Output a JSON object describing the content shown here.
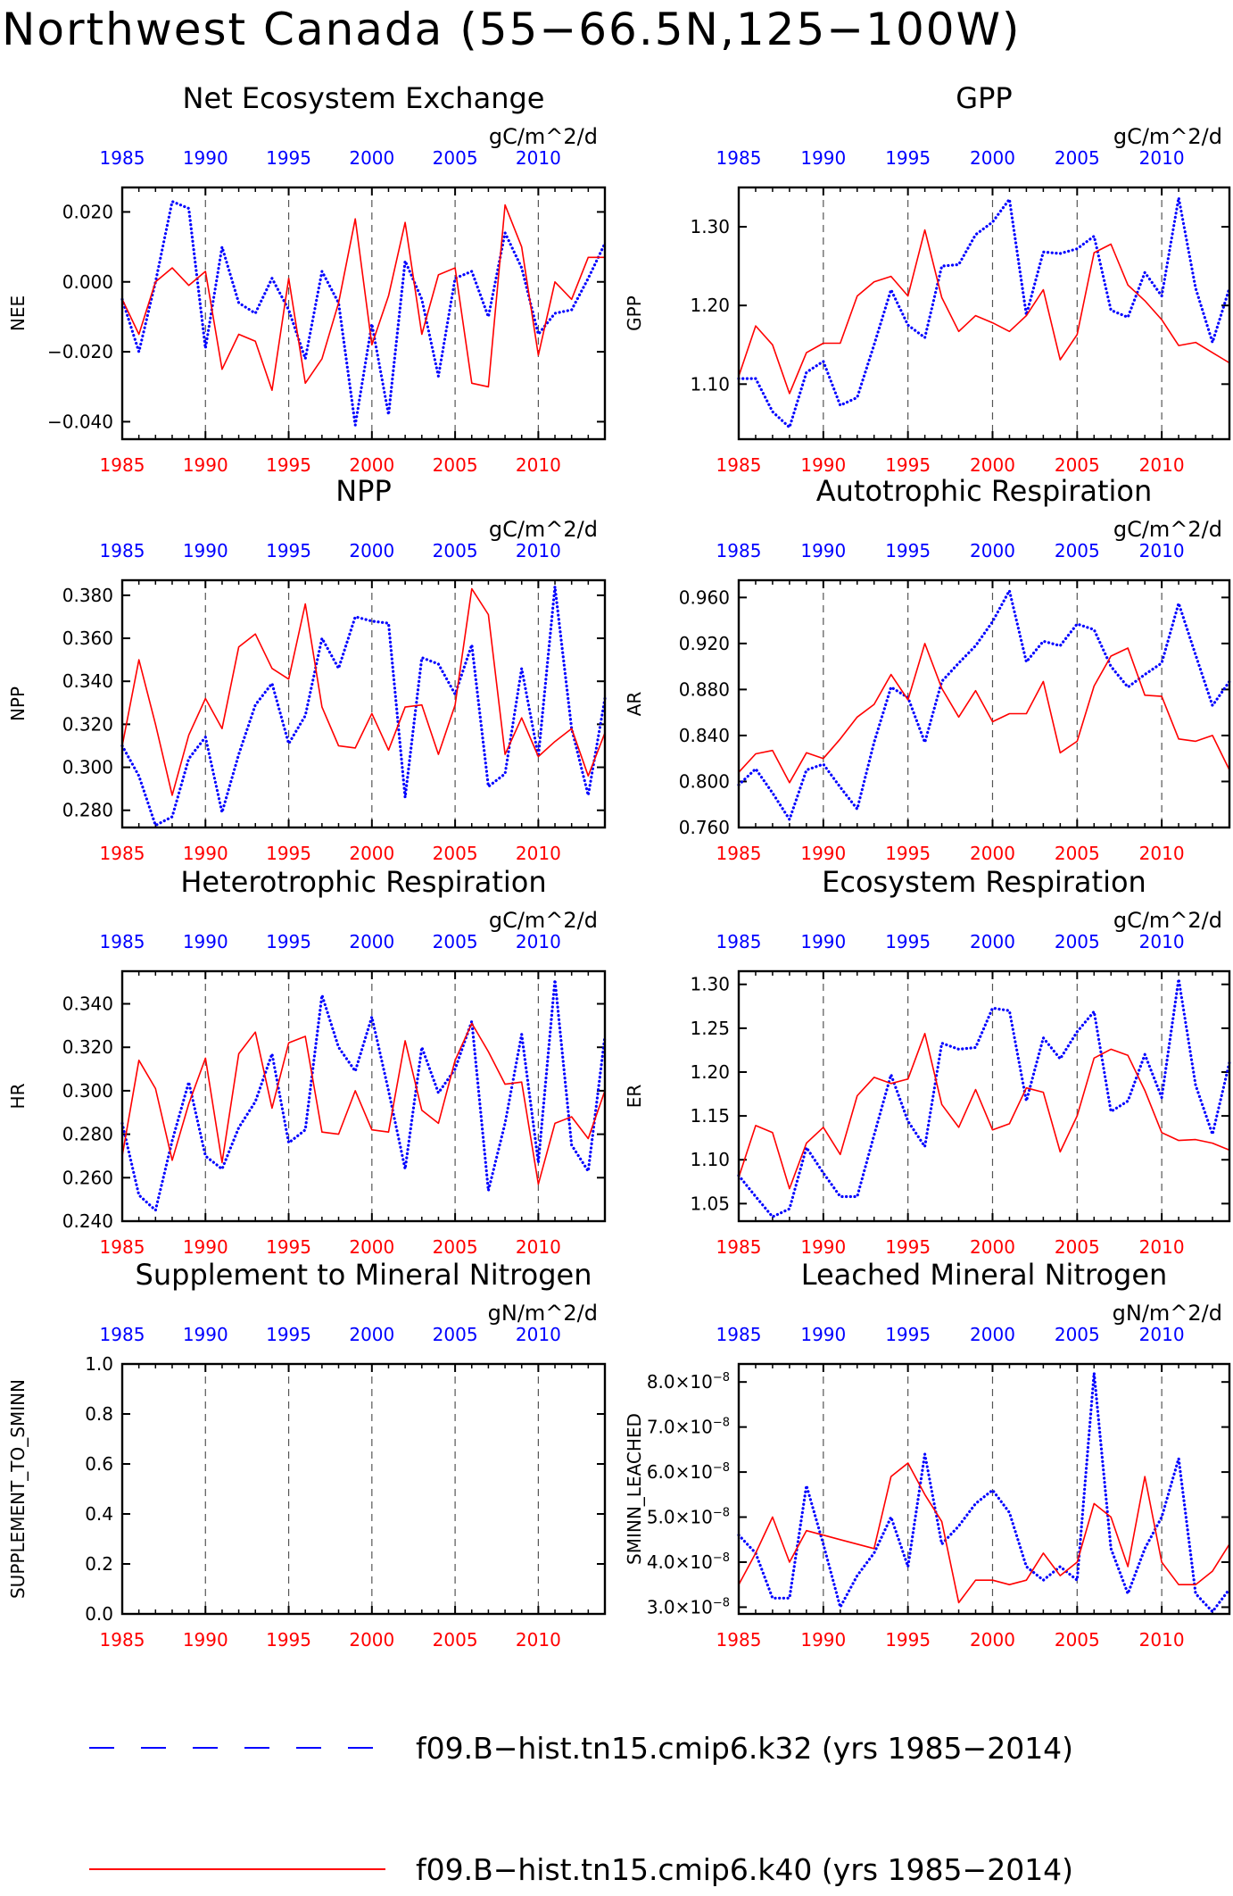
{
  "page": {
    "title": "Northwest Canada (55−66.5N,125−100W)"
  },
  "colors": {
    "run1": "#0000ff",
    "run2": "#ff0000",
    "frame": "#000000",
    "grid": "#555555"
  },
  "legend": {
    "position": "bottom",
    "entries": [
      {
        "label": "f09.B−hist.tn15.cmip6.k32 (yrs 1985−2014)",
        "color": "#0000ff",
        "style": "dashed"
      },
      {
        "label": "f09.B−hist.tn15.cmip6.k40 (yrs 1985−2014)",
        "color": "#ff0000",
        "style": "solid"
      }
    ]
  },
  "chart_data": [
    {
      "type": "line",
      "title": "Net Ecosystem Exchange",
      "units": "gC/m^2/d",
      "ylabel": "NEE",
      "xlim": [
        1985,
        2014
      ],
      "ylim": [
        -0.045,
        0.027
      ],
      "yticks": [
        -0.04,
        -0.02,
        0.0,
        0.02
      ],
      "ytick_labels": [
        "−0.040",
        "−0.020",
        "0.000",
        "0.020"
      ],
      "xticks": [
        1985,
        1990,
        1995,
        2000,
        2005,
        2010
      ],
      "grid_x": [
        1990,
        1995,
        2000,
        2005,
        2010
      ],
      "x": [
        1985,
        1986,
        1987,
        1988,
        1989,
        1990,
        1991,
        1992,
        1993,
        1994,
        1995,
        1996,
        1997,
        1998,
        1999,
        2000,
        2001,
        2002,
        2003,
        2004,
        2005,
        2006,
        2007,
        2008,
        2009,
        2010,
        2011,
        2012,
        2013,
        2014
      ],
      "series": [
        {
          "name": "f09.B−hist.tn15.cmip6.k32 (yrs 1985−2014)",
          "color": "#0000ff",
          "style": "dotted",
          "values": [
            -0.005,
            -0.02,
            0.0,
            0.023,
            0.021,
            -0.019,
            0.01,
            -0.006,
            -0.009,
            0.001,
            -0.008,
            -0.022,
            0.003,
            -0.006,
            -0.041,
            -0.012,
            -0.038,
            0.006,
            -0.005,
            -0.027,
            0.001,
            0.003,
            -0.01,
            0.014,
            0.004,
            -0.015,
            -0.009,
            -0.008,
            0.001,
            0.011
          ]
        },
        {
          "name": "f09.B−hist.tn15.cmip6.k40 (yrs 1985−2014)",
          "color": "#ff0000",
          "style": "solid",
          "values": [
            -0.005,
            -0.015,
            0.0,
            0.004,
            -0.001,
            0.003,
            -0.025,
            -0.015,
            -0.017,
            -0.031,
            0.001,
            -0.029,
            -0.022,
            -0.006,
            0.018,
            -0.018,
            -0.004,
            0.017,
            -0.015,
            0.002,
            0.004,
            -0.029,
            -0.03,
            0.022,
            0.01,
            -0.021,
            0.0,
            -0.005,
            0.007,
            0.007
          ]
        }
      ]
    },
    {
      "type": "line",
      "title": "GPP",
      "units": "gC/m^2/d",
      "ylabel": "GPP",
      "xlim": [
        1985,
        2014
      ],
      "ylim": [
        1.03,
        1.35
      ],
      "yticks": [
        1.1,
        1.2,
        1.3
      ],
      "ytick_labels": [
        "1.10",
        "1.20",
        "1.30"
      ],
      "xticks": [
        1985,
        1990,
        1995,
        2000,
        2005,
        2010
      ],
      "grid_x": [
        1990,
        1995,
        2000,
        2005,
        2010
      ],
      "x": [
        1985,
        1986,
        1987,
        1988,
        1989,
        1990,
        1991,
        1992,
        1993,
        1994,
        1995,
        1996,
        1997,
        1998,
        1999,
        2000,
        2001,
        2002,
        2003,
        2004,
        2005,
        2006,
        2007,
        2008,
        2009,
        2010,
        2011,
        2012,
        2013,
        2014
      ],
      "series": [
        {
          "name": "f09.B−hist.tn15.cmip6.k32 (yrs 1985−2014)",
          "color": "#0000ff",
          "style": "dotted",
          "values": [
            1.107,
            1.107,
            1.065,
            1.045,
            1.115,
            1.129,
            1.073,
            1.083,
            1.15,
            1.22,
            1.175,
            1.159,
            1.25,
            1.252,
            1.29,
            1.306,
            1.335,
            1.188,
            1.268,
            1.266,
            1.272,
            1.288,
            1.194,
            1.185,
            1.242,
            1.212,
            1.337,
            1.222,
            1.153,
            1.222
          ]
        },
        {
          "name": "f09.B−hist.tn15.cmip6.k40 (yrs 1985−2014)",
          "color": "#ff0000",
          "style": "solid",
          "values": [
            1.11,
            1.174,
            1.15,
            1.088,
            1.14,
            1.152,
            1.152,
            1.212,
            1.23,
            1.237,
            1.212,
            1.296,
            1.21,
            1.167,
            1.187,
            1.178,
            1.167,
            1.187,
            1.22,
            1.131,
            1.163,
            1.267,
            1.278,
            1.226,
            1.206,
            1.182,
            1.149,
            1.153,
            1.14,
            1.127
          ]
        }
      ]
    },
    {
      "type": "line",
      "title": "NPP",
      "units": "gC/m^2/d",
      "ylabel": "NPP",
      "xlim": [
        1985,
        2014
      ],
      "ylim": [
        0.272,
        0.387
      ],
      "yticks": [
        0.28,
        0.3,
        0.32,
        0.34,
        0.36,
        0.38
      ],
      "ytick_labels": [
        "0.280",
        "0.300",
        "0.320",
        "0.340",
        "0.360",
        "0.380"
      ],
      "xticks": [
        1985,
        1990,
        1995,
        2000,
        2005,
        2010
      ],
      "grid_x": [
        1990,
        1995,
        2000,
        2005,
        2010
      ],
      "x": [
        1985,
        1986,
        1987,
        1988,
        1989,
        1990,
        1991,
        1992,
        1993,
        1994,
        1995,
        1996,
        1997,
        1998,
        1999,
        2000,
        2001,
        2002,
        2003,
        2004,
        2005,
        2006,
        2007,
        2008,
        2009,
        2010,
        2011,
        2012,
        2013,
        2014
      ],
      "series": [
        {
          "name": "f09.B−hist.tn15.cmip6.k32 (yrs 1985−2014)",
          "color": "#0000ff",
          "style": "dotted",
          "values": [
            0.31,
            0.296,
            0.273,
            0.277,
            0.304,
            0.314,
            0.279,
            0.306,
            0.329,
            0.339,
            0.311,
            0.324,
            0.36,
            0.346,
            0.37,
            0.368,
            0.367,
            0.286,
            0.351,
            0.348,
            0.334,
            0.357,
            0.291,
            0.297,
            0.346,
            0.305,
            0.384,
            0.318,
            0.287,
            0.332
          ]
        },
        {
          "name": "f09.B−hist.tn15.cmip6.k40 (yrs 1985−2014)",
          "color": "#ff0000",
          "style": "solid",
          "values": [
            0.31,
            0.35,
            0.32,
            0.287,
            0.315,
            0.332,
            0.318,
            0.356,
            0.362,
            0.346,
            0.341,
            0.376,
            0.328,
            0.31,
            0.309,
            0.325,
            0.308,
            0.328,
            0.329,
            0.306,
            0.329,
            0.383,
            0.371,
            0.306,
            0.323,
            0.305,
            0.312,
            0.318,
            0.296,
            0.316
          ]
        }
      ]
    },
    {
      "type": "line",
      "title": "Autotrophic Respiration",
      "units": "gC/m^2/d",
      "ylabel": "AR",
      "xlim": [
        1985,
        2014
      ],
      "ylim": [
        0.76,
        0.975
      ],
      "yticks": [
        0.76,
        0.8,
        0.84,
        0.88,
        0.92,
        0.96
      ],
      "ytick_labels": [
        "0.760",
        "0.800",
        "0.840",
        "0.880",
        "0.920",
        "0.960"
      ],
      "xticks": [
        1985,
        1990,
        1995,
        2000,
        2005,
        2010
      ],
      "grid_x": [
        1990,
        1995,
        2000,
        2005,
        2010
      ],
      "x": [
        1985,
        1986,
        1987,
        1988,
        1989,
        1990,
        1991,
        1992,
        1993,
        1994,
        1995,
        1996,
        1997,
        1998,
        1999,
        2000,
        2001,
        2002,
        2003,
        2004,
        2005,
        2006,
        2007,
        2008,
        2009,
        2010,
        2011,
        2012,
        2013,
        2014
      ],
      "series": [
        {
          "name": "f09.B−hist.tn15.cmip6.k32 (yrs 1985−2014)",
          "color": "#0000ff",
          "style": "dotted",
          "values": [
            0.797,
            0.811,
            0.79,
            0.767,
            0.81,
            0.815,
            0.795,
            0.776,
            0.834,
            0.882,
            0.873,
            0.834,
            0.887,
            0.903,
            0.918,
            0.939,
            0.966,
            0.904,
            0.922,
            0.918,
            0.937,
            0.932,
            0.9,
            0.882,
            0.893,
            0.903,
            0.955,
            0.91,
            0.866,
            0.887
          ]
        },
        {
          "name": "f09.B−hist.tn15.cmip6.k40 (yrs 1985−2014)",
          "color": "#ff0000",
          "style": "solid",
          "values": [
            0.808,
            0.824,
            0.827,
            0.799,
            0.825,
            0.82,
            0.837,
            0.856,
            0.867,
            0.893,
            0.871,
            0.92,
            0.881,
            0.856,
            0.879,
            0.852,
            0.859,
            0.859,
            0.887,
            0.825,
            0.835,
            0.883,
            0.909,
            0.916,
            0.875,
            0.874,
            0.837,
            0.835,
            0.84,
            0.81
          ]
        }
      ]
    },
    {
      "type": "line",
      "title": "Heterotrophic Respiration",
      "units": "gC/m^2/d",
      "ylabel": "HR",
      "xlim": [
        1985,
        2014
      ],
      "ylim": [
        0.24,
        0.355
      ],
      "yticks": [
        0.24,
        0.26,
        0.28,
        0.3,
        0.32,
        0.34
      ],
      "ytick_labels": [
        "0.240",
        "0.260",
        "0.280",
        "0.300",
        "0.320",
        "0.340"
      ],
      "xticks": [
        1985,
        1990,
        1995,
        2000,
        2005,
        2010
      ],
      "grid_x": [
        1990,
        1995,
        2000,
        2005,
        2010
      ],
      "x": [
        1985,
        1986,
        1987,
        1988,
        1989,
        1990,
        1991,
        1992,
        1993,
        1994,
        1995,
        1996,
        1997,
        1998,
        1999,
        2000,
        2001,
        2002,
        2003,
        2004,
        2005,
        2006,
        2007,
        2008,
        2009,
        2010,
        2011,
        2012,
        2013,
        2014
      ],
      "series": [
        {
          "name": "f09.B−hist.tn15.cmip6.k32 (yrs 1985−2014)",
          "color": "#0000ff",
          "style": "dotted",
          "values": [
            0.285,
            0.252,
            0.245,
            0.277,
            0.304,
            0.27,
            0.264,
            0.283,
            0.295,
            0.317,
            0.276,
            0.282,
            0.344,
            0.32,
            0.309,
            0.334,
            0.3,
            0.264,
            0.32,
            0.299,
            0.31,
            0.332,
            0.254,
            0.285,
            0.326,
            0.267,
            0.351,
            0.275,
            0.263,
            0.325
          ]
        },
        {
          "name": "f09.B−hist.tn15.cmip6.k40 (yrs 1985−2014)",
          "color": "#ff0000",
          "style": "solid",
          "values": [
            0.27,
            0.314,
            0.301,
            0.268,
            0.294,
            0.315,
            0.267,
            0.317,
            0.327,
            0.292,
            0.322,
            0.325,
            0.281,
            0.28,
            0.3,
            0.282,
            0.281,
            0.323,
            0.291,
            0.285,
            0.314,
            0.331,
            0.318,
            0.303,
            0.304,
            0.257,
            0.285,
            0.288,
            0.278,
            0.3
          ]
        }
      ]
    },
    {
      "type": "line",
      "title": "Ecosystem Respiration",
      "units": "gC/m^2/d",
      "ylabel": "ER",
      "xlim": [
        1985,
        2014
      ],
      "ylim": [
        1.03,
        1.315
      ],
      "yticks": [
        1.05,
        1.1,
        1.15,
        1.2,
        1.25,
        1.3
      ],
      "ytick_labels": [
        "1.05",
        "1.10",
        "1.15",
        "1.20",
        "1.25",
        "1.30"
      ],
      "xticks": [
        1985,
        1990,
        1995,
        2000,
        2005,
        2010
      ],
      "grid_x": [
        1990,
        1995,
        2000,
        2005,
        2010
      ],
      "x": [
        1985,
        1986,
        1987,
        1988,
        1989,
        1990,
        1991,
        1992,
        1993,
        1994,
        1995,
        1996,
        1997,
        1998,
        1999,
        2000,
        2001,
        2002,
        2003,
        2004,
        2005,
        2006,
        2007,
        2008,
        2009,
        2010,
        2011,
        2012,
        2013,
        2014
      ],
      "series": [
        {
          "name": "f09.B−hist.tn15.cmip6.k32 (yrs 1985−2014)",
          "color": "#0000ff",
          "style": "dotted",
          "values": [
            1.082,
            1.058,
            1.035,
            1.044,
            1.114,
            1.085,
            1.058,
            1.058,
            1.128,
            1.197,
            1.144,
            1.115,
            1.233,
            1.226,
            1.228,
            1.273,
            1.27,
            1.167,
            1.239,
            1.215,
            1.246,
            1.269,
            1.155,
            1.167,
            1.22,
            1.171,
            1.306,
            1.185,
            1.129,
            1.211
          ]
        },
        {
          "name": "f09.B−hist.tn15.cmip6.k40 (yrs 1985−2014)",
          "color": "#ff0000",
          "style": "solid",
          "values": [
            1.08,
            1.139,
            1.131,
            1.067,
            1.119,
            1.137,
            1.106,
            1.173,
            1.194,
            1.187,
            1.192,
            1.244,
            1.163,
            1.137,
            1.18,
            1.134,
            1.141,
            1.182,
            1.177,
            1.109,
            1.15,
            1.216,
            1.226,
            1.219,
            1.179,
            1.131,
            1.122,
            1.123,
            1.119,
            1.111
          ]
        }
      ]
    },
    {
      "type": "line",
      "title": "Supplement to Mineral Nitrogen",
      "units": "gN/m^2/d",
      "ylabel": "SUPPLEMENT_TO_SMINN",
      "xlim": [
        1985,
        2014
      ],
      "ylim": [
        0,
        1
      ],
      "yticks": [
        0,
        0.2,
        0.4,
        0.6,
        0.8,
        1.0
      ],
      "ytick_labels": [
        "0.0",
        "0.2",
        "0.4",
        "0.6",
        "0.8",
        "1.0"
      ],
      "xticks": [
        1985,
        1990,
        1995,
        2000,
        2005,
        2010
      ],
      "grid_x": [
        1990,
        1995,
        2000,
        2005,
        2010
      ],
      "x": [],
      "series": []
    },
    {
      "type": "line",
      "title": "Leached Mineral Nitrogen",
      "units": "gN/m^2/d",
      "ylabel": "SMINN_LEACHED",
      "xlim": [
        1985,
        2014
      ],
      "ylim": [
        2.85e-08,
        8.4e-08
      ],
      "yticks": [
        3e-08,
        4e-08,
        5e-08,
        6e-08,
        7e-08,
        8e-08
      ],
      "ytick_labels": [
        {
          "mant": "3.0",
          "exp": "−8"
        },
        {
          "mant": "4.0",
          "exp": "−8"
        },
        {
          "mant": "5.0",
          "exp": "−8"
        },
        {
          "mant": "6.0",
          "exp": "−8"
        },
        {
          "mant": "7.0",
          "exp": "−8"
        },
        {
          "mant": "8.0",
          "exp": "−8"
        }
      ],
      "xticks": [
        1985,
        1990,
        1995,
        2000,
        2005,
        2010
      ],
      "grid_x": [
        1990,
        1995,
        2000,
        2005,
        2010
      ],
      "x": [
        1985,
        1986,
        1987,
        1988,
        1989,
        1990,
        1991,
        1992,
        1993,
        1994,
        1995,
        1996,
        1997,
        1998,
        1999,
        2000,
        2001,
        2002,
        2003,
        2004,
        2005,
        2006,
        2007,
        2008,
        2009,
        2010,
        2011,
        2012,
        2013,
        2014
      ],
      "series": [
        {
          "name": "f09.B−hist.tn15.cmip6.k32 (yrs 1985−2014)",
          "color": "#0000ff",
          "style": "dotted",
          "values": [
            4.6e-08,
            4.2e-08,
            3.2e-08,
            3.2e-08,
            5.7e-08,
            4.4e-08,
            3e-08,
            3.7e-08,
            4.2e-08,
            5e-08,
            3.9e-08,
            6.4e-08,
            4.4e-08,
            4.8e-08,
            5.3e-08,
            5.6e-08,
            5.1e-08,
            3.9e-08,
            3.6e-08,
            3.9e-08,
            3.6e-08,
            8.2e-08,
            4.3e-08,
            3.3e-08,
            4.3e-08,
            5e-08,
            6.3e-08,
            3.3e-08,
            2.9e-08,
            3.4e-08
          ]
        },
        {
          "name": "f09.B−hist.tn15.cmip6.k40 (yrs 1985−2014)",
          "color": "#ff0000",
          "style": "solid",
          "values": [
            3.5e-08,
            4.2e-08,
            5e-08,
            4e-08,
            4.7e-08,
            4.6e-08,
            4.5e-08,
            4.4e-08,
            4.3e-08,
            5.9e-08,
            6.2e-08,
            5.5e-08,
            4.9e-08,
            3.1e-08,
            3.6e-08,
            3.6e-08,
            3.5e-08,
            3.6e-08,
            4.2e-08,
            3.7e-08,
            4e-08,
            5.3e-08,
            5e-08,
            3.9e-08,
            5.9e-08,
            4e-08,
            3.5e-08,
            3.5e-08,
            3.8e-08,
            4.4e-08
          ]
        }
      ]
    }
  ]
}
